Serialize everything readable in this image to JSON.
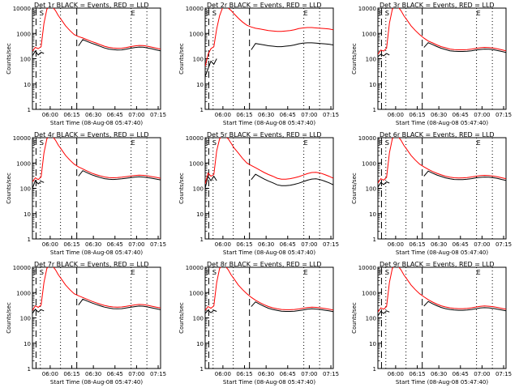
{
  "figure": {
    "start_time_label": "Start Time (08-Aug-08 05:47:40)",
    "y_axis_label": "Counts/sec",
    "y_ticks": [
      "10000",
      "1000",
      "100",
      "10",
      "1"
    ],
    "x_ticks": [
      "06:00",
      "06:15",
      "06:30",
      "06:45",
      "07:00",
      "07:15"
    ],
    "marker_letters": [
      "E",
      "S",
      "E"
    ],
    "colors": {
      "events": "#000000",
      "lld": "#ff0000"
    }
  },
  "chart_data": [
    {
      "type": "line",
      "title": "Det 1r BLACK = Events, RED = LLD",
      "xlabel": "Start Time (08-Aug-08 05:47:40)",
      "ylabel": "Counts/sec",
      "yscale": "log",
      "ylim": [
        1,
        10000
      ],
      "x_unit": "minutes after 05:47:40",
      "x": [
        0,
        2,
        4,
        6,
        8,
        10,
        12,
        14,
        16,
        18,
        20,
        23,
        26,
        29,
        32,
        35,
        38,
        41,
        44,
        47,
        50,
        53,
        56,
        59,
        62,
        65,
        68,
        71,
        74,
        77,
        80,
        83,
        86,
        89
      ],
      "series": [
        {
          "name": "Events",
          "color": "#000000",
          "values": [
            130,
            200,
            140,
            180,
            160,
            null,
            null,
            null,
            null,
            null,
            null,
            null,
            null,
            null,
            null,
            null,
            null,
            null,
            null,
            null,
            null,
            null,
            null,
            null,
            null,
            null,
            null,
            null,
            null,
            null,
            null,
            null,
            null,
            null
          ]
        },
        {
          "name": "LLD",
          "color": "#ff0000",
          "values": [
            200,
            280,
            250,
            300,
            2500,
            9000,
            12000,
            11000,
            8000,
            5000,
            3500,
            2000,
            1300,
            900,
            750,
            660,
            560,
            480,
            420,
            360,
            310,
            280,
            265,
            258,
            260,
            275,
            300,
            320,
            335,
            330,
            310,
            285,
            260,
            240
          ]
        }
      ]
    },
    {
      "type": "line",
      "title": "Det 2r BLACK = Events, RED = LLD",
      "xlabel": "Start Time (08-Aug-08 05:47:40)",
      "ylabel": "Counts/sec",
      "yscale": "log",
      "ylim": [
        1,
        10000
      ],
      "x_unit": "minutes after 05:47:40",
      "x": [
        0,
        2,
        4,
        6,
        8,
        10,
        12,
        14,
        16,
        18,
        20,
        23,
        26,
        29,
        32,
        35,
        38,
        41,
        44,
        47,
        50,
        53,
        56,
        59,
        62,
        65,
        68,
        71,
        74,
        77,
        80,
        83,
        86,
        89
      ],
      "series": [
        {
          "name": "Events",
          "color": "#000000",
          "values": [
            20,
            40,
            80,
            60,
            100,
            null,
            null,
            null,
            null,
            null,
            null,
            null,
            null,
            null,
            null,
            null,
            null,
            null,
            null,
            null,
            null,
            null,
            null,
            null,
            null,
            null,
            null,
            null,
            null,
            null,
            null,
            null,
            null,
            null
          ]
        },
        {
          "name": "LLD",
          "color": "#ff0000",
          "values": [
            50,
            150,
            250,
            300,
            1500,
            5000,
            10000,
            12000,
            10000,
            8000,
            6000,
            4000,
            2800,
            2100,
            1800,
            1600,
            1500,
            1400,
            1300,
            1250,
            1200,
            1200,
            1250,
            1300,
            1400,
            1550,
            1650,
            1700,
            1700,
            1650,
            1600,
            1550,
            1500,
            1400
          ]
        }
      ]
    },
    {
      "type": "line",
      "title": "Det 3r BLACK = Events, RED = LLD",
      "xlabel": "Start Time (08-Aug-08 05:47:40)",
      "ylabel": "Counts/sec",
      "yscale": "log",
      "ylim": [
        1,
        10000
      ],
      "x_unit": "minutes after 05:47:40",
      "x": [
        0,
        2,
        4,
        6,
        8,
        10,
        12,
        14,
        16,
        18,
        20,
        23,
        26,
        29,
        32,
        35,
        38,
        41,
        44,
        47,
        50,
        53,
        56,
        59,
        62,
        65,
        68,
        71,
        74,
        77,
        80,
        83,
        86,
        89
      ],
      "series": [
        {
          "name": "Events",
          "color": "#000000",
          "values": [
            120,
            150,
            130,
            160,
            140,
            null,
            null,
            null,
            null,
            null,
            null,
            null,
            null,
            null,
            null,
            null,
            null,
            null,
            null,
            null,
            null,
            null,
            null,
            null,
            null,
            null,
            null,
            null,
            null,
            null,
            null,
            null,
            null,
            null
          ]
        },
        {
          "name": "LLD",
          "color": "#ff0000",
          "values": [
            150,
            220,
            200,
            260,
            2500,
            9000,
            12000,
            11000,
            8000,
            5000,
            3500,
            2000,
            1300,
            900,
            650,
            500,
            420,
            350,
            300,
            270,
            240,
            230,
            225,
            225,
            230,
            240,
            255,
            270,
            280,
            275,
            265,
            245,
            225,
            205
          ]
        }
      ]
    },
    {
      "type": "line",
      "title": "Det 4r BLACK = Events, RED = LLD",
      "xlabel": "Start Time (08-Aug-08 05:47:40)",
      "ylabel": "Counts/sec",
      "yscale": "log",
      "ylim": [
        1,
        10000
      ],
      "x_unit": "minutes after 05:47:40",
      "x": [
        0,
        2,
        4,
        6,
        8,
        10,
        12,
        14,
        16,
        18,
        20,
        23,
        26,
        29,
        32,
        35,
        38,
        41,
        44,
        47,
        50,
        53,
        56,
        59,
        62,
        65,
        68,
        71,
        74,
        77,
        80,
        83,
        86,
        89
      ],
      "series": [
        {
          "name": "Events",
          "color": "#000000",
          "values": [
            100,
            200,
            150,
            190,
            170,
            null,
            null,
            null,
            null,
            null,
            null,
            null,
            null,
            null,
            null,
            null,
            null,
            null,
            null,
            null,
            null,
            null,
            null,
            null,
            null,
            null,
            null,
            null,
            null,
            null,
            null,
            null,
            null,
            null
          ]
        },
        {
          "name": "LLD",
          "color": "#ff0000",
          "values": [
            180,
            260,
            220,
            280,
            2500,
            9000,
            12000,
            11000,
            8000,
            5000,
            3500,
            2000,
            1300,
            900,
            700,
            580,
            480,
            400,
            350,
            310,
            280,
            265,
            260,
            265,
            275,
            290,
            305,
            320,
            330,
            325,
            310,
            290,
            270,
            250
          ]
        }
      ]
    },
    {
      "type": "line",
      "title": "Det 5r BLACK = Events, RED = LLD",
      "xlabel": "Start Time (08-Aug-08 05:47:40)",
      "ylabel": "Counts/sec",
      "yscale": "log",
      "ylim": [
        1,
        10000
      ],
      "x_unit": "minutes after 05:47:40",
      "x": [
        0,
        2,
        4,
        6,
        8,
        10,
        12,
        14,
        16,
        18,
        20,
        23,
        26,
        29,
        32,
        35,
        38,
        41,
        44,
        47,
        50,
        53,
        56,
        59,
        62,
        65,
        68,
        71,
        74,
        77,
        80,
        83,
        86,
        89
      ],
      "series": [
        {
          "name": "Events",
          "color": "#000000",
          "values": [
            100,
            300,
            200,
            300,
            200,
            null,
            null,
            null,
            null,
            null,
            null,
            null,
            null,
            null,
            null,
            null,
            null,
            null,
            null,
            null,
            null,
            null,
            null,
            null,
            null,
            null,
            null,
            null,
            null,
            null,
            null,
            null,
            null,
            null
          ]
        },
        {
          "name": "LLD",
          "color": "#ff0000",
          "values": [
            150,
            400,
            300,
            350,
            3000,
            9000,
            12000,
            11000,
            9000,
            6000,
            4000,
            2500,
            1500,
            1000,
            800,
            650,
            520,
            420,
            350,
            300,
            250,
            230,
            230,
            240,
            260,
            290,
            330,
            380,
            420,
            430,
            400,
            350,
            300,
            250
          ]
        }
      ]
    },
    {
      "type": "line",
      "title": "Det 6r BLACK = Events, RED = LLD",
      "xlabel": "Start Time (08-Aug-08 05:47:40)",
      "ylabel": "Counts/sec",
      "yscale": "log",
      "ylim": [
        1,
        10000
      ],
      "x_unit": "minutes after 05:47:40",
      "x": [
        0,
        2,
        4,
        6,
        8,
        10,
        12,
        14,
        16,
        18,
        20,
        23,
        26,
        29,
        32,
        35,
        38,
        41,
        44,
        47,
        50,
        53,
        56,
        59,
        62,
        65,
        68,
        71,
        74,
        77,
        80,
        83,
        86,
        89
      ],
      "series": [
        {
          "name": "Events",
          "color": "#000000",
          "values": [
            110,
            170,
            140,
            180,
            160,
            null,
            null,
            null,
            null,
            null,
            null,
            null,
            null,
            null,
            null,
            null,
            null,
            null,
            null,
            null,
            null,
            null,
            null,
            null,
            null,
            null,
            null,
            null,
            null,
            null,
            null,
            null,
            null,
            null
          ]
        },
        {
          "name": "LLD",
          "color": "#ff0000",
          "values": [
            160,
            240,
            210,
            270,
            2500,
            9000,
            12000,
            11000,
            8000,
            5000,
            3500,
            2000,
            1300,
            900,
            700,
            560,
            460,
            390,
            340,
            300,
            275,
            260,
            255,
            258,
            265,
            280,
            300,
            315,
            325,
            320,
            305,
            285,
            260,
            240
          ]
        }
      ]
    },
    {
      "type": "line",
      "title": "Det 7r BLACK = Events, RED = LLD",
      "xlabel": "Start Time (08-Aug-08 05:47:40)",
      "ylabel": "Counts/sec",
      "yscale": "log",
      "ylim": [
        1,
        10000
      ],
      "x_unit": "minutes after 05:47:40",
      "x": [
        0,
        2,
        4,
        6,
        8,
        10,
        12,
        14,
        16,
        18,
        20,
        23,
        26,
        29,
        32,
        35,
        38,
        41,
        44,
        47,
        50,
        53,
        56,
        59,
        62,
        65,
        68,
        71,
        74,
        77,
        80,
        83,
        86,
        89
      ],
      "series": [
        {
          "name": "Events",
          "color": "#000000",
          "values": [
            150,
            220,
            170,
            210,
            190,
            null,
            null,
            null,
            null,
            null,
            null,
            null,
            null,
            null,
            null,
            null,
            null,
            null,
            null,
            null,
            null,
            null,
            null,
            null,
            null,
            null,
            null,
            null,
            null,
            null,
            null,
            null,
            null,
            null
          ]
        },
        {
          "name": "LLD",
          "color": "#ff0000",
          "values": [
            200,
            300,
            260,
            320,
            2500,
            9000,
            12000,
            11000,
            8000,
            5000,
            3500,
            2000,
            1300,
            900,
            750,
            640,
            540,
            460,
            400,
            350,
            310,
            285,
            270,
            265,
            270,
            285,
            305,
            325,
            340,
            335,
            315,
            290,
            265,
            245
          ]
        }
      ]
    },
    {
      "type": "line",
      "title": "Det 8r BLACK = Events, RED = LLD",
      "xlabel": "Start Time (08-Aug-08 05:47:40)",
      "ylabel": "Counts/sec",
      "yscale": "log",
      "ylim": [
        1,
        10000
      ],
      "x_unit": "minutes after 05:47:40",
      "x": [
        0,
        2,
        4,
        6,
        8,
        10,
        12,
        14,
        16,
        18,
        20,
        23,
        26,
        29,
        32,
        35,
        38,
        41,
        44,
        47,
        50,
        53,
        56,
        59,
        62,
        65,
        68,
        71,
        74,
        77,
        80,
        83,
        86,
        89
      ],
      "series": [
        {
          "name": "Events",
          "color": "#000000",
          "values": [
            150,
            200,
            160,
            200,
            180,
            null,
            null,
            null,
            null,
            null,
            null,
            null,
            null,
            null,
            null,
            null,
            null,
            null,
            null,
            null,
            null,
            null,
            null,
            null,
            null,
            null,
            null,
            null,
            null,
            null,
            null,
            null,
            null,
            null
          ]
        },
        {
          "name": "LLD",
          "color": "#ff0000",
          "values": [
            200,
            280,
            240,
            300,
            2500,
            9000,
            12000,
            11000,
            8000,
            5000,
            3500,
            2000,
            1300,
            900,
            650,
            500,
            400,
            330,
            280,
            250,
            230,
            215,
            210,
            210,
            215,
            225,
            240,
            255,
            265,
            260,
            250,
            235,
            220,
            205
          ]
        }
      ]
    },
    {
      "type": "line",
      "title": "Det 9r BLACK = Events, RED = LLD",
      "xlabel": "Start Time (08-Aug-08 05:47:40)",
      "ylabel": "Counts/sec",
      "yscale": "log",
      "ylim": [
        1,
        10000
      ],
      "x_unit": "minutes after 05:47:40",
      "x": [
        0,
        2,
        4,
        6,
        8,
        10,
        12,
        14,
        16,
        18,
        20,
        23,
        26,
        29,
        32,
        35,
        38,
        41,
        44,
        47,
        50,
        53,
        56,
        59,
        62,
        65,
        68,
        71,
        74,
        77,
        80,
        83,
        86,
        89
      ],
      "series": [
        {
          "name": "Events",
          "color": "#000000",
          "values": [
            120,
            180,
            150,
            190,
            170,
            null,
            null,
            null,
            null,
            null,
            null,
            null,
            null,
            null,
            null,
            null,
            null,
            null,
            null,
            null,
            null,
            null,
            null,
            null,
            null,
            null,
            null,
            null,
            null,
            null,
            null,
            null,
            null,
            null
          ]
        },
        {
          "name": "LLD",
          "color": "#ff0000",
          "values": [
            170,
            250,
            220,
            280,
            2500,
            9000,
            12000,
            11000,
            8000,
            5000,
            3500,
            2000,
            1300,
            900,
            680,
            520,
            420,
            350,
            300,
            270,
            250,
            238,
            232,
            232,
            238,
            250,
            268,
            285,
            295,
            290,
            278,
            258,
            238,
            220
          ]
        }
      ]
    }
  ]
}
